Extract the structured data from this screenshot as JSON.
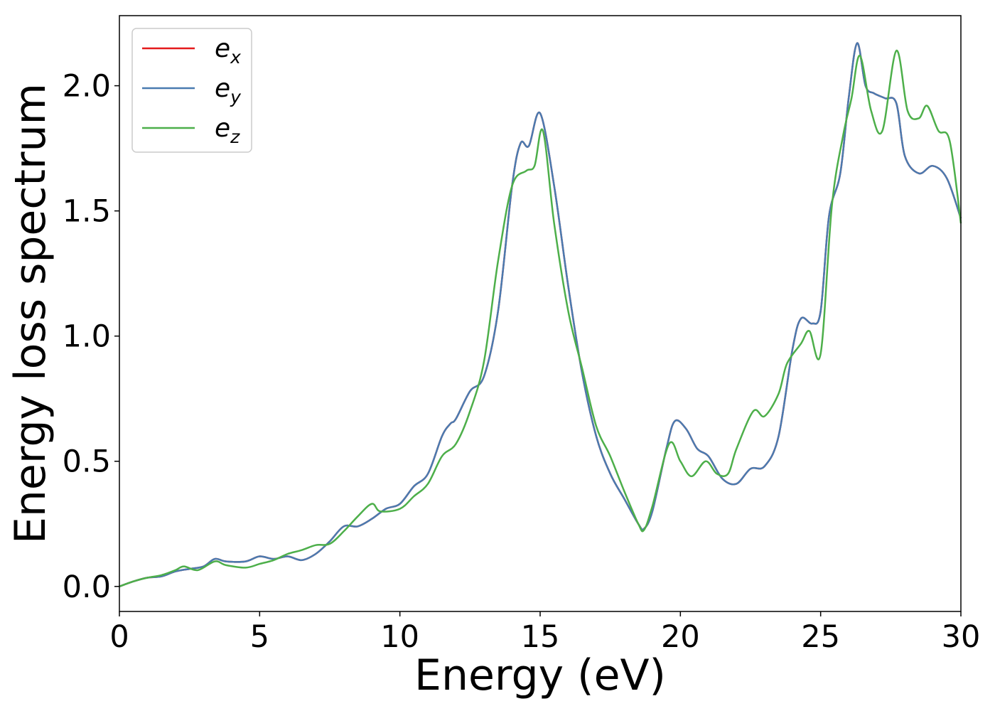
{
  "chart_data": {
    "type": "line",
    "xlabel": "Energy (eV)",
    "ylabel": "Energy loss spectrum",
    "xlim": [
      0,
      30
    ],
    "ylim": [
      -0.1,
      2.28
    ],
    "xticks": [
      "0",
      "5",
      "10",
      "15",
      "20",
      "25",
      "30"
    ],
    "yticks": [
      "0.0",
      "0.5",
      "1.0",
      "1.5",
      "2.0"
    ],
    "grid": false,
    "legend_position": "top-left",
    "series": [
      {
        "name": "e_x",
        "label_base": "e",
        "label_sub": "x",
        "color": "#e41a1c",
        "x": [
          0,
          0.5,
          1,
          1.5,
          2,
          2.5,
          3,
          3.4,
          3.8,
          4.5,
          5,
          5.5,
          6,
          6.5,
          7,
          7.5,
          8,
          8.5,
          9,
          9.5,
          10,
          10.5,
          11,
          11.5,
          11.8,
          12,
          12.5,
          13,
          13.5,
          14,
          14.3,
          14.6,
          15,
          15.5,
          16,
          16.5,
          17,
          17.5,
          18,
          18.5,
          18.7,
          19,
          19.5,
          19.8,
          20.2,
          20.6,
          21,
          21.5,
          22,
          22.5,
          23,
          23.5,
          24,
          24.3,
          24.7,
          25,
          25.3,
          25.7,
          26,
          26.3,
          26.6,
          26.9,
          27.3,
          27.7,
          28,
          28.5,
          29,
          29.5,
          30
        ],
        "values": [
          0,
          0.02,
          0.035,
          0.04,
          0.06,
          0.07,
          0.08,
          0.11,
          0.1,
          0.1,
          0.12,
          0.11,
          0.12,
          0.105,
          0.13,
          0.18,
          0.24,
          0.24,
          0.27,
          0.31,
          0.33,
          0.4,
          0.45,
          0.6,
          0.65,
          0.67,
          0.78,
          0.84,
          1.1,
          1.6,
          1.77,
          1.76,
          1.89,
          1.6,
          1.2,
          0.85,
          0.6,
          0.45,
          0.35,
          0.25,
          0.23,
          0.3,
          0.55,
          0.66,
          0.63,
          0.55,
          0.52,
          0.43,
          0.41,
          0.47,
          0.48,
          0.6,
          0.95,
          1.07,
          1.05,
          1.1,
          1.48,
          1.65,
          1.95,
          2.17,
          2.0,
          1.97,
          1.95,
          1.93,
          1.72,
          1.65,
          1.68,
          1.63,
          1.47
        ]
      },
      {
        "name": "e_y",
        "label_base": "e",
        "label_sub": "y",
        "color": "#4a7bb0",
        "x": [
          0,
          0.5,
          1,
          1.5,
          2,
          2.5,
          3,
          3.4,
          3.8,
          4.5,
          5,
          5.5,
          6,
          6.5,
          7,
          7.5,
          8,
          8.5,
          9,
          9.5,
          10,
          10.5,
          11,
          11.5,
          11.8,
          12,
          12.5,
          13,
          13.5,
          14,
          14.3,
          14.6,
          15,
          15.5,
          16,
          16.5,
          17,
          17.5,
          18,
          18.5,
          18.7,
          19,
          19.5,
          19.8,
          20.2,
          20.6,
          21,
          21.5,
          22,
          22.5,
          23,
          23.5,
          24,
          24.3,
          24.7,
          25,
          25.3,
          25.7,
          26,
          26.3,
          26.6,
          26.9,
          27.3,
          27.7,
          28,
          28.5,
          29,
          29.5,
          30
        ],
        "values": [
          0,
          0.02,
          0.035,
          0.04,
          0.06,
          0.07,
          0.08,
          0.11,
          0.1,
          0.1,
          0.12,
          0.11,
          0.12,
          0.105,
          0.13,
          0.18,
          0.24,
          0.24,
          0.27,
          0.31,
          0.33,
          0.4,
          0.45,
          0.6,
          0.65,
          0.67,
          0.78,
          0.84,
          1.1,
          1.6,
          1.77,
          1.76,
          1.89,
          1.6,
          1.2,
          0.85,
          0.6,
          0.45,
          0.35,
          0.25,
          0.23,
          0.3,
          0.55,
          0.66,
          0.63,
          0.55,
          0.52,
          0.43,
          0.41,
          0.47,
          0.48,
          0.6,
          0.95,
          1.07,
          1.05,
          1.1,
          1.48,
          1.65,
          1.95,
          2.17,
          2.0,
          1.97,
          1.95,
          1.93,
          1.72,
          1.65,
          1.68,
          1.63,
          1.47
        ]
      },
      {
        "name": "e_z",
        "label_base": "e",
        "label_sub": "z",
        "color": "#4daf4a",
        "x": [
          0,
          0.5,
          1,
          1.5,
          2,
          2.3,
          2.8,
          3.4,
          3.8,
          4.5,
          5,
          5.5,
          6,
          6.5,
          7,
          7.5,
          8,
          8.5,
          9,
          9.3,
          10,
          10.5,
          11,
          11.5,
          12,
          12.5,
          13,
          13.5,
          14,
          14.5,
          14.8,
          15.1,
          15.5,
          16,
          16.5,
          17,
          17.5,
          18,
          18.5,
          18.7,
          19,
          19.6,
          20,
          20.4,
          20.9,
          21.3,
          21.7,
          22,
          22.6,
          23,
          23.5,
          23.8,
          24.3,
          24.6,
          25,
          25.4,
          25.8,
          26.1,
          26.4,
          26.8,
          27.2,
          27.7,
          28.1,
          28.5,
          28.8,
          29.2,
          29.6,
          30
        ],
        "values": [
          0,
          0.02,
          0.035,
          0.045,
          0.065,
          0.08,
          0.065,
          0.1,
          0.085,
          0.075,
          0.09,
          0.105,
          0.13,
          0.145,
          0.165,
          0.17,
          0.22,
          0.28,
          0.33,
          0.3,
          0.31,
          0.36,
          0.41,
          0.52,
          0.57,
          0.7,
          0.9,
          1.3,
          1.6,
          1.66,
          1.68,
          1.82,
          1.45,
          1.1,
          0.87,
          0.64,
          0.52,
          0.38,
          0.25,
          0.225,
          0.32,
          0.57,
          0.5,
          0.44,
          0.5,
          0.45,
          0.45,
          0.55,
          0.7,
          0.68,
          0.77,
          0.89,
          0.97,
          1.02,
          0.93,
          1.52,
          1.8,
          1.95,
          2.12,
          1.9,
          1.82,
          2.14,
          1.9,
          1.87,
          1.92,
          1.82,
          1.78,
          1.45
        ]
      }
    ]
  }
}
